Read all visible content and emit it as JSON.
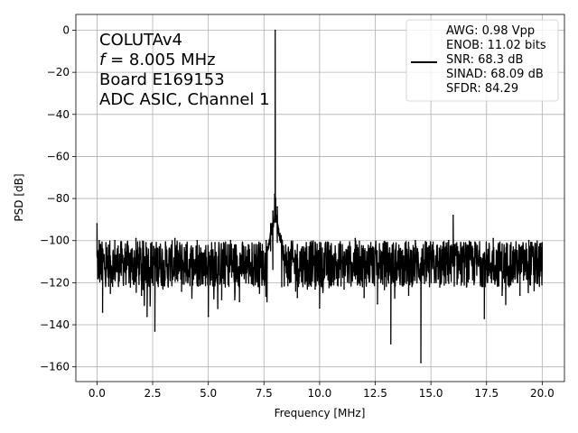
{
  "chart_data": {
    "type": "line",
    "xlabel": "Frequency [MHz]",
    "ylabel": "PSD [dB]",
    "xlim": [
      -0.95,
      21.0
    ],
    "ylim": [
      -167.0,
      7.5
    ],
    "x_ticks": [
      0.0,
      2.5,
      5.0,
      7.5,
      10.0,
      12.5,
      15.0,
      17.5,
      20.0
    ],
    "x_tick_labels": [
      "0.0",
      "2.5",
      "5.0",
      "7.5",
      "10.0",
      "12.5",
      "15.0",
      "17.5",
      "20.0"
    ],
    "y_ticks": [
      0,
      -20,
      -40,
      -60,
      -80,
      -100,
      -120,
      -140,
      -160
    ],
    "y_tick_labels": [
      "0",
      "−20",
      "−40",
      "−60",
      "−80",
      "−100",
      "−120",
      "−140",
      "−160"
    ],
    "grid": true,
    "legend_position": "top-right",
    "annotation_lines": [
      "COLUTAv4",
      "f = 8.005 MHz",
      "Board E169153",
      "ADC ASIC, Channel 1"
    ],
    "legend_lines": [
      "AWG: 0.98 Vpp",
      "ENOB: 11.02 bits",
      "SNR: 68.3 dB",
      "SINAD: 68.09 dB",
      "SFDR: 84.29"
    ],
    "series": [
      {
        "color": "#000000",
        "noise_floor_db": -111,
        "noise_band_db": [
          -122,
          -100
        ],
        "points": [
          [
            0.0,
            -92
          ],
          [
            0.05,
            -118
          ],
          [
            0.1,
            -100
          ],
          [
            0.25,
            -134
          ],
          [
            0.4,
            -101
          ],
          [
            0.6,
            -125
          ],
          [
            0.8,
            -100
          ],
          [
            1.0,
            -118
          ],
          [
            1.25,
            -104
          ],
          [
            1.5,
            -122
          ],
          [
            1.75,
            -99
          ],
          [
            2.0,
            -126
          ],
          [
            2.2,
            -101
          ],
          [
            2.25,
            -136
          ],
          [
            2.6,
            -143
          ],
          [
            2.8,
            -103
          ],
          [
            3.2,
            -122
          ],
          [
            3.5,
            -99
          ],
          [
            3.8,
            -124
          ],
          [
            4.0,
            -102
          ],
          [
            4.3,
            -121
          ],
          [
            4.5,
            -100
          ],
          [
            5.0,
            -136
          ],
          [
            5.3,
            -101
          ],
          [
            5.6,
            -128
          ],
          [
            6.0,
            -100
          ],
          [
            6.4,
            -129
          ],
          [
            6.8,
            -102
          ],
          [
            7.3,
            -125
          ],
          [
            7.6,
            -100
          ],
          [
            7.8,
            -92
          ],
          [
            7.9,
            -86
          ],
          [
            7.98,
            -78
          ],
          [
            8.005,
            0
          ],
          [
            8.03,
            -80
          ],
          [
            8.1,
            -84
          ],
          [
            8.3,
            -100
          ],
          [
            8.6,
            -118
          ],
          [
            9.0,
            -127
          ],
          [
            9.4,
            -101
          ],
          [
            9.8,
            -123
          ],
          [
            10.0,
            -132
          ],
          [
            10.4,
            -101
          ],
          [
            10.8,
            -121
          ],
          [
            11.1,
            -123
          ],
          [
            11.6,
            -99
          ],
          [
            12.0,
            -127
          ],
          [
            12.3,
            -101
          ],
          [
            12.6,
            -130
          ],
          [
            13.0,
            -101
          ],
          [
            13.2,
            -149
          ],
          [
            13.6,
            -104
          ],
          [
            14.0,
            -126
          ],
          [
            14.3,
            -100
          ],
          [
            14.55,
            -158
          ],
          [
            14.8,
            -101
          ],
          [
            15.4,
            -122
          ],
          [
            15.8,
            -100
          ],
          [
            16.0,
            -88
          ],
          [
            16.2,
            -103
          ],
          [
            16.6,
            -122
          ],
          [
            17.0,
            -101
          ],
          [
            17.4,
            -137
          ],
          [
            17.8,
            -99
          ],
          [
            18.2,
            -126
          ],
          [
            18.6,
            -101
          ],
          [
            19.0,
            -126
          ],
          [
            19.4,
            -100
          ],
          [
            19.8,
            -120
          ],
          [
            20.0,
            -101
          ]
        ]
      }
    ]
  }
}
